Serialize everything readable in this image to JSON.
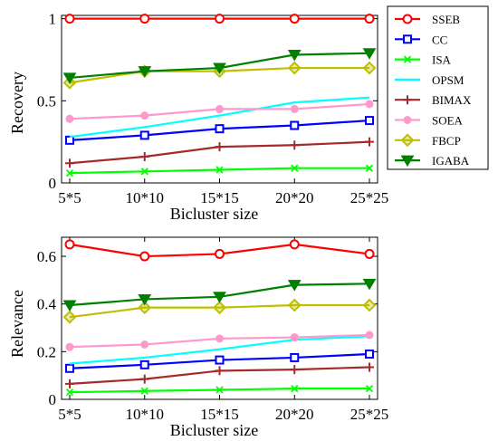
{
  "chart_data": [
    {
      "type": "line",
      "categories": [
        "5*5",
        "10*10",
        "15*15",
        "20*20",
        "25*25"
      ],
      "xlabel": "Bicluster size",
      "ylabel": "Recovery",
      "ylim": [
        0,
        1.02
      ],
      "yticks": [
        0,
        0.5,
        1
      ],
      "ytick_labels": [
        "0",
        "0.5",
        "1"
      ],
      "grid": false,
      "legend_position": "right",
      "series": [
        {
          "name": "SSEB",
          "color": "#ff0000",
          "marker": "circle",
          "values": [
            1,
            1,
            1,
            1,
            1
          ]
        },
        {
          "name": "CC",
          "color": "#0000ff",
          "marker": "square",
          "values": [
            0.26,
            0.29,
            0.33,
            0.35,
            0.38
          ]
        },
        {
          "name": "ISA",
          "color": "#00ff00",
          "marker": "x",
          "values": [
            0.06,
            0.07,
            0.08,
            0.09,
            0.09
          ]
        },
        {
          "name": "OPSM",
          "color": "#00ffff",
          "marker": "none",
          "values": [
            0.28,
            0.34,
            0.41,
            0.49,
            0.52
          ]
        },
        {
          "name": "BIMAX",
          "color": "#a52a2a",
          "marker": "plus",
          "values": [
            0.12,
            0.16,
            0.22,
            0.23,
            0.25
          ]
        },
        {
          "name": "SOEA",
          "color": "#ff99cc",
          "marker": "dot",
          "values": [
            0.39,
            0.41,
            0.45,
            0.45,
            0.48
          ]
        },
        {
          "name": "FBCP",
          "color": "#bfbf00",
          "marker": "diamond",
          "values": [
            0.61,
            0.68,
            0.68,
            0.7,
            0.7
          ]
        },
        {
          "name": "IGABA",
          "color": "#007f00",
          "marker": "triangle-down",
          "values": [
            0.64,
            0.68,
            0.7,
            0.78,
            0.79
          ]
        }
      ]
    },
    {
      "type": "line",
      "categories": [
        "5*5",
        "10*10",
        "15*15",
        "20*20",
        "25*25"
      ],
      "xlabel": "Bicluster size",
      "ylabel": "Relevance",
      "ylim": [
        0,
        0.68
      ],
      "yticks": [
        0,
        0.2,
        0.4,
        0.6
      ],
      "ytick_labels": [
        "0",
        "0.2",
        "0.4",
        "0.6"
      ],
      "grid": false,
      "series": [
        {
          "color": "#ff0000",
          "marker": "circle",
          "values": [
            0.65,
            0.6,
            0.61,
            0.65,
            0.61
          ]
        },
        {
          "color": "#0000ff",
          "marker": "square",
          "values": [
            0.13,
            0.145,
            0.165,
            0.175,
            0.19
          ]
        },
        {
          "color": "#00ff00",
          "marker": "x",
          "values": [
            0.03,
            0.035,
            0.04,
            0.045,
            0.045
          ]
        },
        {
          "color": "#00ffff",
          "marker": "none",
          "values": [
            0.15,
            0.175,
            0.21,
            0.25,
            0.265
          ]
        },
        {
          "color": "#a52a2a",
          "marker": "plus",
          "values": [
            0.065,
            0.085,
            0.12,
            0.125,
            0.135
          ]
        },
        {
          "color": "#ff99cc",
          "marker": "dot",
          "values": [
            0.22,
            0.23,
            0.255,
            0.26,
            0.27
          ]
        },
        {
          "color": "#bfbf00",
          "marker": "diamond",
          "values": [
            0.345,
            0.385,
            0.385,
            0.395,
            0.395
          ]
        },
        {
          "color": "#007f00",
          "marker": "triangle-down",
          "values": [
            0.395,
            0.42,
            0.43,
            0.48,
            0.485
          ]
        }
      ]
    }
  ]
}
